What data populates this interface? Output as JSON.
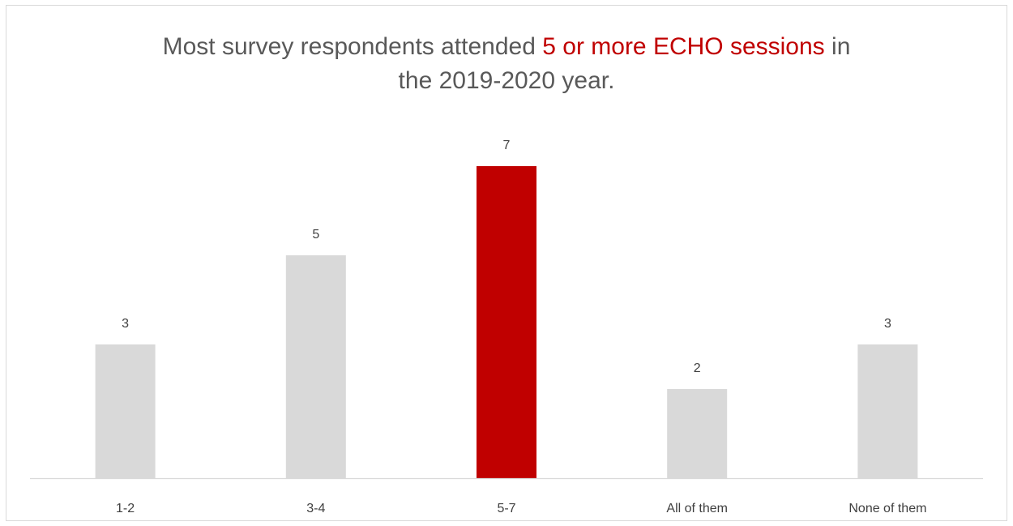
{
  "chart_data": {
    "type": "bar",
    "title": {
      "line1_before": "Most survey respondents attended ",
      "line1_highlight": "5 or more ECHO sessions",
      "line1_after": " in",
      "line2": "the 2019-2020 year."
    },
    "categories": [
      "1-2",
      "3-4",
      "5-7",
      "All of them",
      "None of them"
    ],
    "values": [
      3,
      5,
      7,
      2,
      3
    ],
    "data_labels": [
      "3",
      "5",
      "7",
      "2",
      "3"
    ],
    "highlight_index": 2,
    "xlabel": "",
    "ylabel": "",
    "ylim": [
      0,
      7
    ],
    "grid": false,
    "legend": "none",
    "colors": {
      "bar": "#d9d9d9",
      "highlight": "#c00000",
      "title": "#595959",
      "title_highlight": "#c00000",
      "axis": "#d9d9d9",
      "label": "#404040"
    }
  }
}
